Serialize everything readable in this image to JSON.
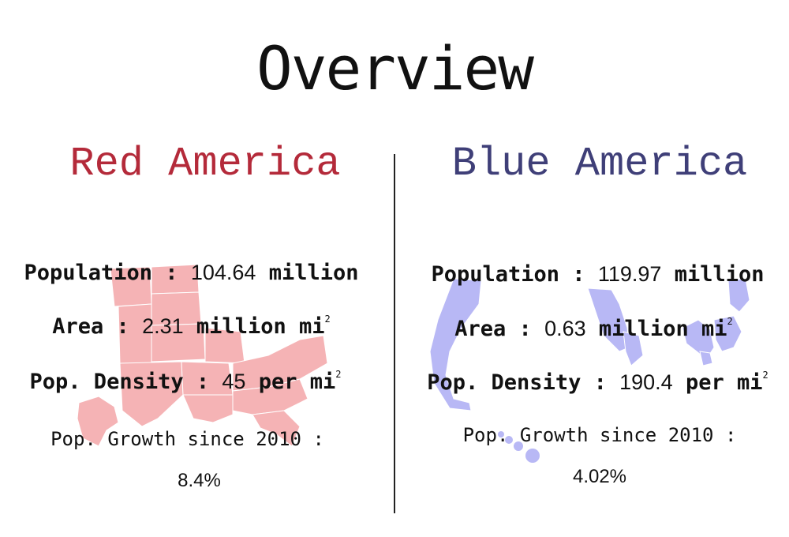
{
  "page_title": "Overview",
  "red": {
    "title": "Red America",
    "color": "#b42a3a",
    "map_color": "#f5b3b5",
    "population_label": "Population :",
    "population_value": "104.64",
    "population_unit": "million",
    "area_label": "Area :",
    "area_value": "2.31",
    "area_unit": "million mi",
    "density_label": "Pop. Density :",
    "density_value": "45",
    "density_unit": "per mi",
    "growth_label": "Pop. Growth since 2010 :",
    "growth_value": "8.4%"
  },
  "blue": {
    "title": "Blue America",
    "color": "#3f3f78",
    "map_color": "#b8b8f5",
    "population_label": "Population :",
    "population_value": "119.97",
    "population_unit": "million",
    "area_label": "Area :",
    "area_value": "0.63",
    "area_unit": "million mi",
    "density_label": "Pop. Density :",
    "density_value": "190.4",
    "density_unit": "per mi",
    "growth_label": "Pop. Growth since 2010 :",
    "growth_value": "4.02%"
  },
  "superscript": "2"
}
